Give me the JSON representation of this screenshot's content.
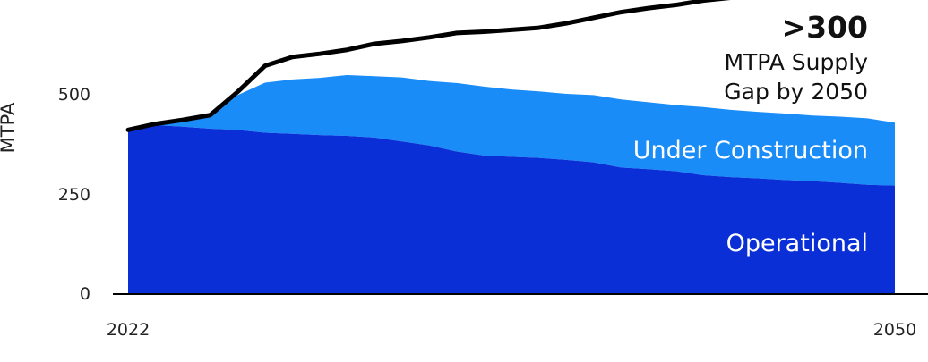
{
  "chart_data": {
    "type": "area",
    "ylabel": "MTPA",
    "xlim": [
      2022,
      2050
    ],
    "ylim": [
      0,
      750
    ],
    "y_ticks": [
      0,
      250,
      500
    ],
    "x_tick_labels": [
      "2022",
      "2050"
    ],
    "y_tick_labels": [
      "0",
      "250",
      "500"
    ],
    "x": [
      2022,
      2023,
      2024,
      2025,
      2026,
      2027,
      2028,
      2029,
      2030,
      2031,
      2032,
      2033,
      2034,
      2035,
      2036,
      2037,
      2038,
      2039,
      2040,
      2041,
      2042,
      2043,
      2044,
      2045,
      2046,
      2047,
      2048,
      2049,
      2050
    ],
    "series": [
      {
        "name": "Operational",
        "color": "#0a2fd6",
        "values": [
          405,
          422,
          418,
          413,
          410,
          403,
          400,
          397,
          395,
          391,
          381,
          371,
          356,
          346,
          343,
          340,
          335,
          329,
          316,
          312,
          307,
          297,
          292,
          289,
          285,
          282,
          278,
          273,
          271
        ]
      },
      {
        "name": "Under Construction",
        "color": "#1a8cf7",
        "values": [
          0,
          0,
          14,
          38,
          87,
          125,
          136,
          143,
          152,
          153,
          160,
          161,
          171,
          172,
          168,
          166,
          165,
          168,
          170,
          167,
          165,
          170,
          168,
          166,
          166,
          164,
          165,
          166,
          157
        ]
      }
    ],
    "demand": {
      "color": "#000000",
      "values": [
        410,
        425,
        435,
        447,
        505,
        570,
        592,
        600,
        610,
        625,
        632,
        641,
        652,
        655,
        660,
        665,
        676,
        690,
        704,
        714,
        722,
        733,
        740,
        740,
        742,
        742,
        743,
        743,
        747
      ]
    },
    "annotation": {
      "big": ">300",
      "line1": "MTPA Supply",
      "line2": "Gap by 2050"
    },
    "area_labels": {
      "under_construction": "Under Construction",
      "operational": "Operational"
    },
    "colors": {
      "operational": "#0a2fd6",
      "under_construction": "#1a8cf7",
      "demand_line": "#000000",
      "axis": "#000000"
    }
  }
}
